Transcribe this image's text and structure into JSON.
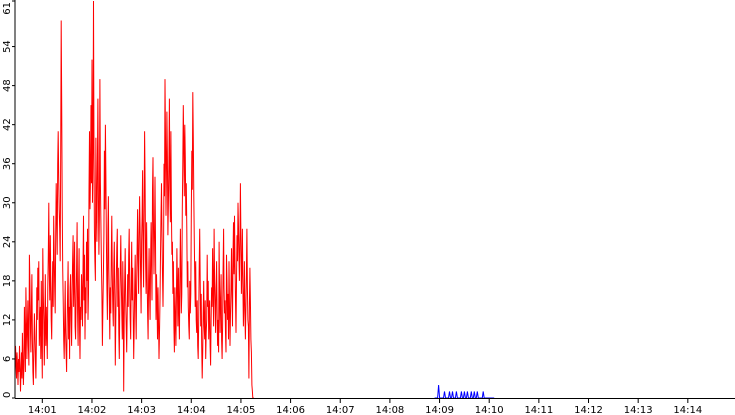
{
  "chart_data": {
    "type": "line",
    "title": "",
    "xlabel": "",
    "ylabel": "",
    "ylim": [
      0,
      61
    ],
    "xlim_minutes": [
      0.45,
      14.95
    ],
    "x_ticks": [
      "14:01",
      "14:02",
      "14:03",
      "14:04",
      "14:05",
      "14:06",
      "14:07",
      "14:08",
      "14:09",
      "14:10",
      "14:11",
      "14:12",
      "14:13",
      "14:14"
    ],
    "x_tick_minutes": [
      1,
      2,
      3,
      4,
      5,
      6,
      7,
      8,
      9,
      10,
      11,
      12,
      13,
      14
    ],
    "y_ticks": [
      0,
      6,
      12,
      18,
      24,
      30,
      36,
      42,
      48,
      54,
      61
    ],
    "y_tick_labels": [
      "0",
      "6",
      "12",
      "18",
      "24",
      "30",
      "36",
      "42",
      "48",
      "54",
      "61"
    ],
    "grid": false,
    "legend": "none",
    "series": [
      {
        "color": "#ff0000",
        "x_start_minute": 0.45,
        "x_step_minute": 0.01,
        "values": [
          3,
          8,
          6,
          3,
          7,
          5,
          2,
          6,
          4,
          8,
          5,
          1,
          4,
          7,
          3,
          10,
          6,
          2,
          5,
          14,
          9,
          4,
          17,
          12,
          6,
          11,
          15,
          8,
          5,
          22,
          18,
          11,
          7,
          14,
          19,
          9,
          4,
          2,
          8,
          13,
          10,
          6,
          3,
          9,
          17,
          12,
          20,
          15,
          21,
          8,
          11,
          14,
          6,
          18,
          9,
          3,
          23,
          16,
          12,
          5,
          11,
          19,
          8,
          14,
          10,
          6,
          17,
          22,
          30,
          19,
          15,
          25,
          18,
          12,
          9,
          16,
          21,
          14,
          28,
          22,
          17,
          13,
          25,
          33,
          28,
          22,
          36,
          41,
          34,
          29,
          26,
          21,
          38,
          58,
          45,
          30,
          20,
          15,
          9,
          6,
          12,
          18,
          10,
          7,
          4,
          11,
          16,
          21,
          9,
          14,
          6,
          17,
          19,
          12,
          8,
          16,
          21,
          25,
          14,
          18,
          24,
          11,
          9,
          15,
          20,
          27,
          13,
          8,
          17,
          23,
          10,
          6,
          14,
          12,
          19,
          16,
          11,
          20,
          28,
          15,
          22,
          9,
          17,
          13,
          24,
          18,
          26,
          12,
          16,
          32,
          41,
          29,
          34,
          45,
          33,
          52,
          30,
          38,
          61,
          37,
          26,
          21,
          18,
          40,
          29,
          24,
          36,
          46,
          31,
          22,
          28,
          49,
          33,
          27,
          21,
          16,
          8,
          14,
          19,
          25,
          38,
          29,
          42,
          34,
          24,
          17,
          12,
          26,
          31,
          20,
          15,
          9,
          17,
          13,
          22,
          28,
          19,
          14,
          11,
          20,
          24,
          16,
          5,
          12,
          18,
          23,
          26,
          14,
          20,
          10,
          6,
          15,
          20,
          25,
          18,
          13,
          9,
          21,
          16,
          1,
          12,
          18,
          23,
          15,
          11,
          7,
          13,
          19,
          14,
          22,
          26,
          17,
          12,
          9,
          18,
          24,
          15,
          20,
          13,
          6,
          11,
          17,
          22,
          14,
          9,
          18,
          24,
          29,
          21,
          16,
          25,
          31,
          26,
          19,
          13,
          24,
          28,
          35,
          22,
          17,
          29,
          41,
          33,
          21,
          16,
          27,
          19,
          13,
          9,
          18,
          23,
          16,
          12,
          21,
          27,
          20,
          15,
          32,
          37,
          26,
          19,
          25,
          34,
          24,
          12,
          19,
          15,
          9,
          17,
          12,
          6,
          10,
          15,
          22,
          28,
          33,
          25,
          19,
          14,
          21,
          36,
          31,
          49,
          40,
          28,
          34,
          44,
          37,
          25,
          30,
          36,
          46,
          32,
          27,
          41,
          29,
          22,
          24,
          16,
          21,
          11,
          7,
          17,
          12,
          8,
          15,
          23,
          17,
          11,
          20,
          14,
          9,
          18,
          26,
          21,
          13,
          16,
          29,
          36,
          45,
          39,
          31,
          42,
          37,
          28,
          33,
          26,
          17,
          21,
          14,
          11,
          9,
          18,
          13,
          16,
          28,
          38,
          32,
          47,
          40,
          31,
          24,
          18,
          14,
          21,
          12,
          10,
          15,
          8,
          6,
          12,
          20,
          26,
          18,
          11,
          16,
          8,
          3,
          7,
          13,
          18,
          11,
          9,
          15,
          6,
          10,
          12,
          22,
          14,
          18,
          9,
          13,
          15,
          8,
          5,
          12,
          17,
          14,
          23,
          17,
          11,
          26,
          18,
          14,
          10,
          17,
          21,
          13,
          8,
          12,
          7,
          24,
          16,
          10,
          15,
          19,
          9,
          6,
          11,
          20,
          26,
          17,
          13,
          15,
          10,
          7,
          22,
          18,
          12,
          16,
          9,
          21,
          14,
          8,
          13,
          17,
          23,
          16,
          11,
          22,
          27,
          19,
          28,
          21,
          15,
          10,
          18,
          25,
          21,
          30,
          27,
          22,
          18,
          24,
          33,
          25,
          16,
          20,
          26,
          17,
          11,
          15,
          21,
          13,
          9,
          14,
          19,
          26,
          17,
          12,
          11,
          3,
          14,
          20,
          15,
          9,
          7,
          2,
          1,
          0,
          0,
          0
        ]
      },
      {
        "color": "#0000ff",
        "x_start_minute": 8.9,
        "x_step_minute": 0.02,
        "values": [
          0,
          0,
          0,
          0,
          2,
          0,
          0,
          0,
          0,
          0,
          1,
          0,
          0,
          0,
          0,
          1,
          0,
          0,
          1,
          0,
          0,
          0,
          1,
          0,
          0,
          0,
          0,
          1,
          0,
          0,
          1,
          0,
          0,
          1,
          0,
          0,
          0,
          1,
          0,
          0,
          1,
          0,
          0,
          1,
          0,
          0,
          0,
          0,
          0,
          1,
          0,
          0,
          0,
          0,
          0,
          0,
          0,
          0,
          0,
          0,
          0
        ]
      }
    ]
  }
}
